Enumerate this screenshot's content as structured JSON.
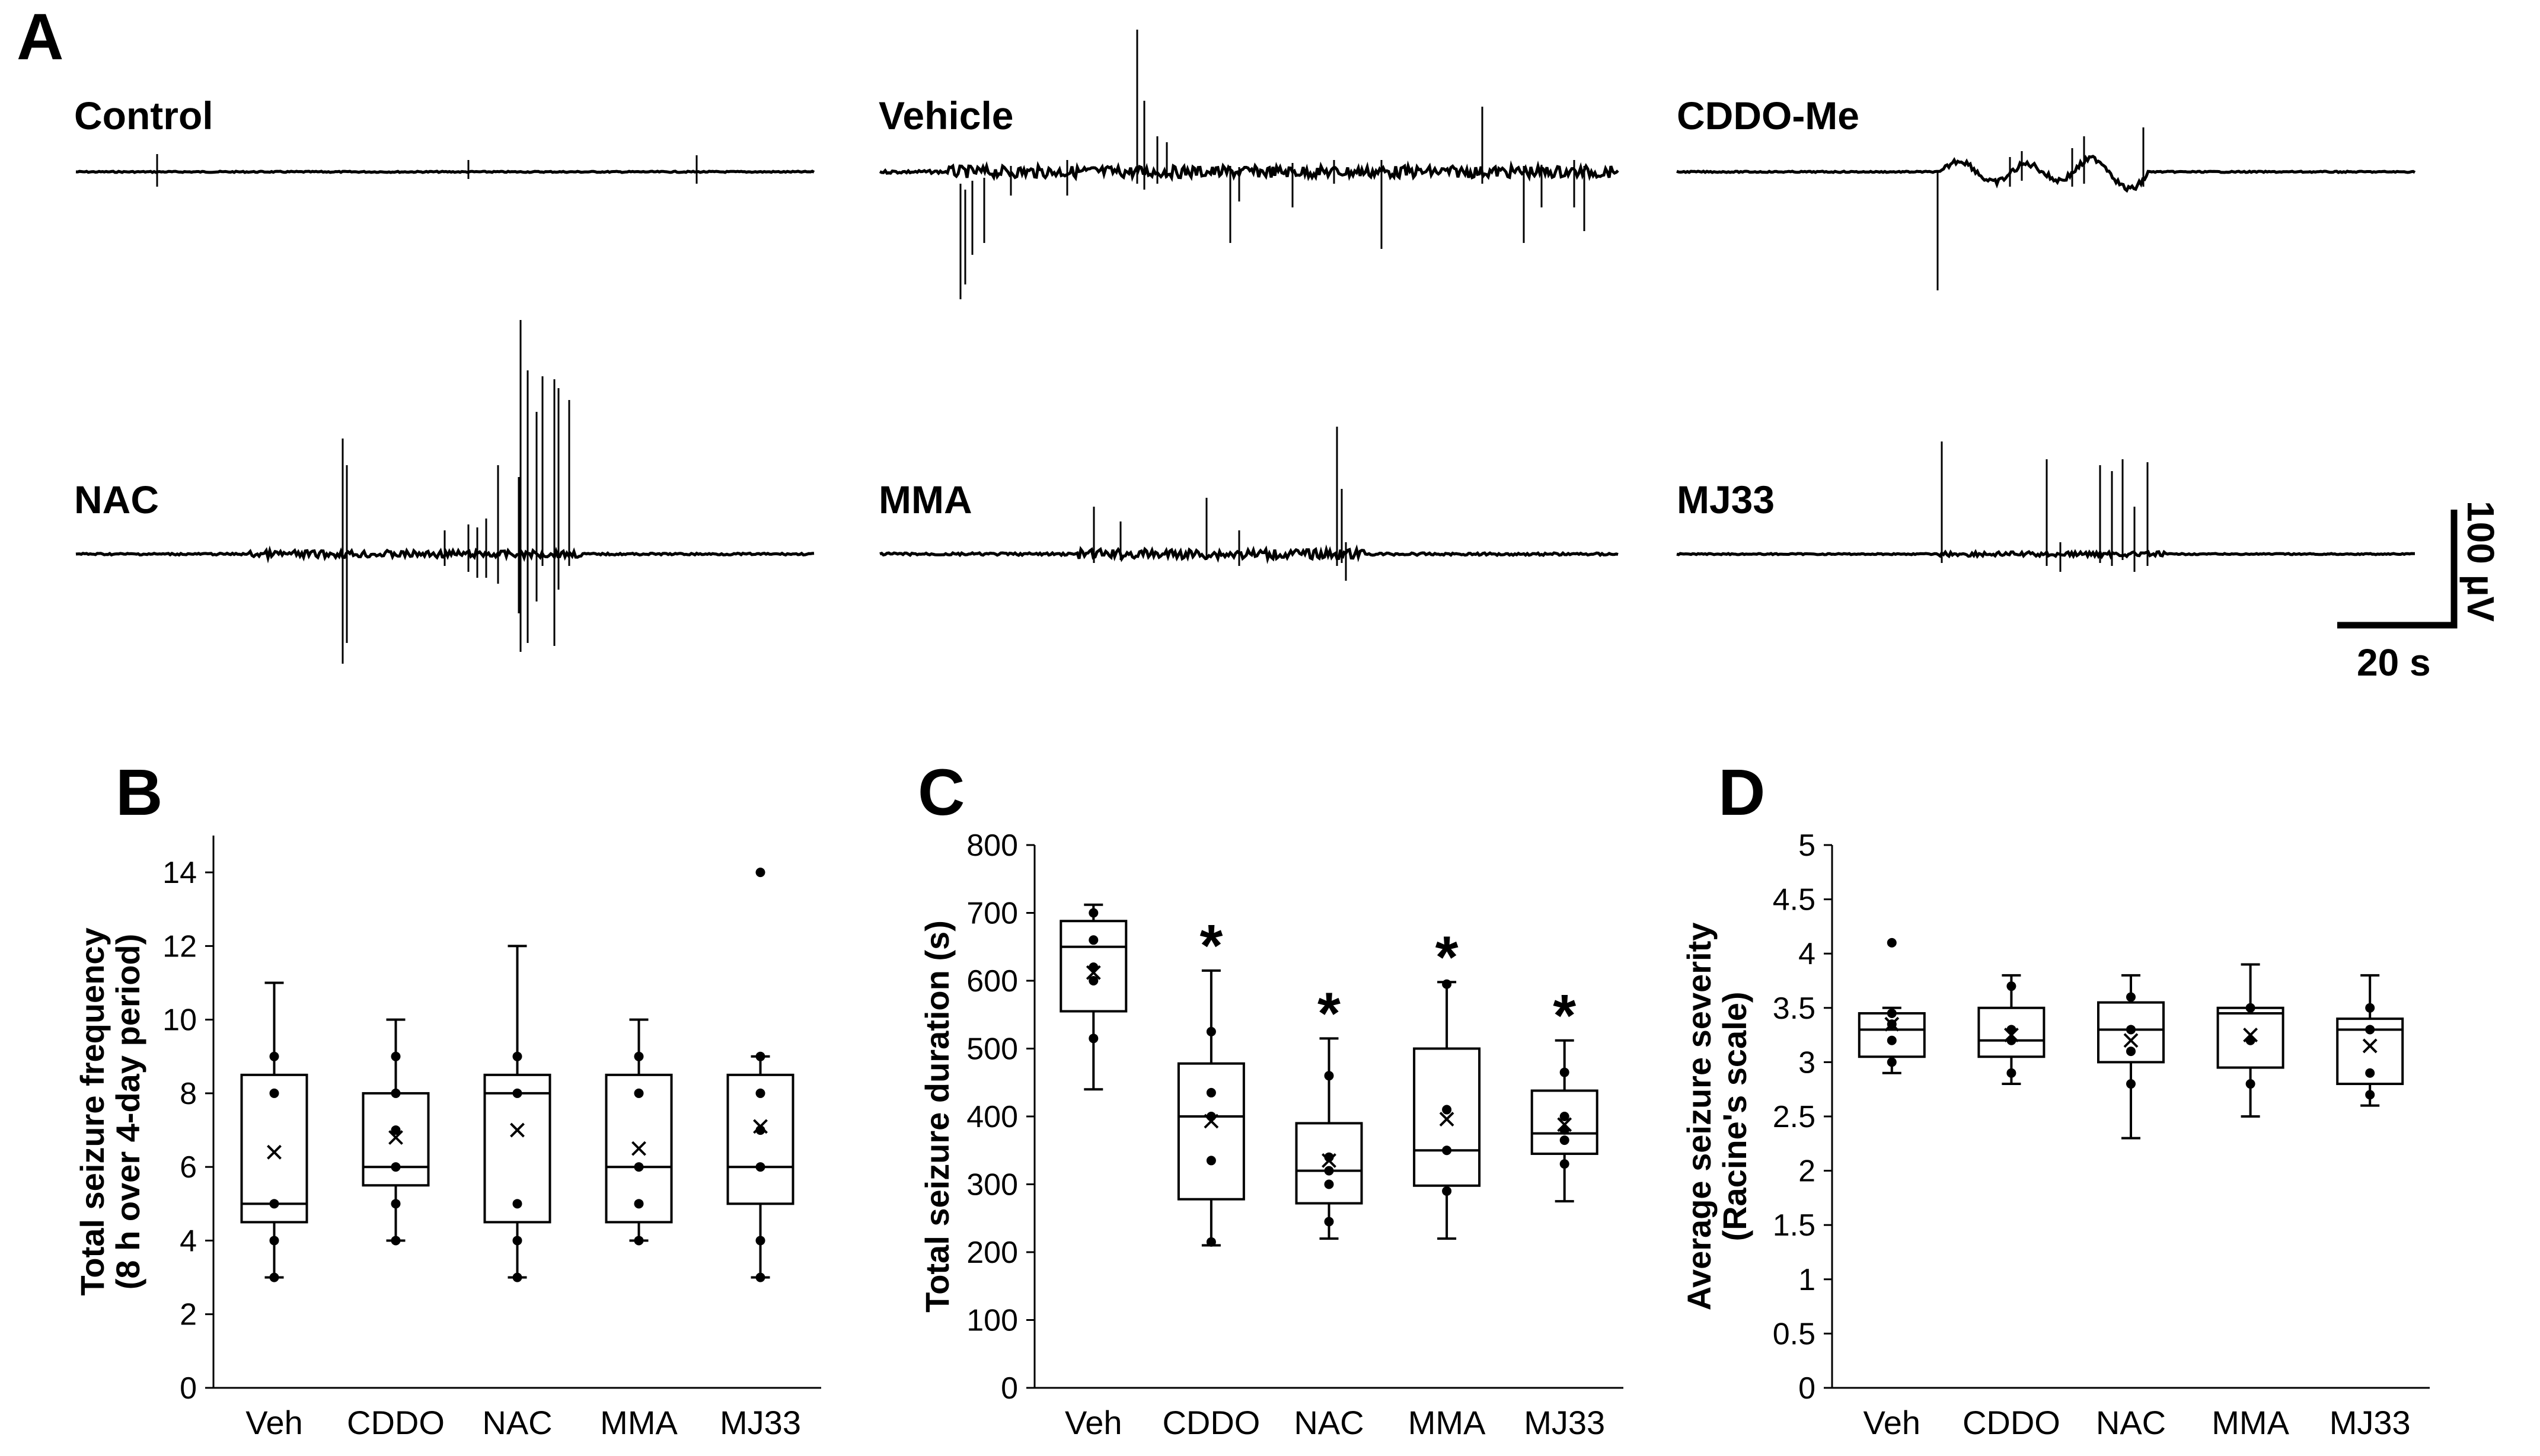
{
  "panels": {
    "A": "A",
    "B": "B",
    "C": "C",
    "D": "D"
  },
  "traces": [
    {
      "label": "Control"
    },
    {
      "label": "Vehicle"
    },
    {
      "label": "CDDO-Me"
    },
    {
      "label": "NAC"
    },
    {
      "label": "MMA"
    },
    {
      "label": "MJ33"
    }
  ],
  "scale_bar": {
    "amplitude": "100 µV",
    "time": "20 s"
  },
  "chart_data": [
    {
      "panel": "B",
      "type": "box",
      "ylabel_lines": [
        "Total seizure frequency",
        "(8 h over 4-day period)"
      ],
      "categories": [
        "Veh",
        "CDDO",
        "NAC",
        "MMA",
        "MJ33"
      ],
      "ylim": [
        0,
        15
      ],
      "yticks": [
        0,
        2,
        4,
        6,
        8,
        10,
        12,
        14
      ],
      "boxes": [
        {
          "min": 3,
          "q1": 4.5,
          "median": 5,
          "q3": 8.5,
          "max": 11,
          "mean": 6.4,
          "points": [
            3,
            4,
            5,
            8,
            9
          ],
          "outliers": [],
          "sig": ""
        },
        {
          "min": 4,
          "q1": 5.5,
          "median": 6,
          "q3": 8,
          "max": 10,
          "mean": 6.8,
          "points": [
            4,
            5,
            6,
            7,
            8,
            9
          ],
          "outliers": [],
          "sig": ""
        },
        {
          "min": 3,
          "q1": 4.5,
          "median": 8,
          "q3": 8.5,
          "max": 12,
          "mean": 7,
          "points": [
            3,
            4,
            5,
            8,
            9
          ],
          "outliers": [],
          "sig": ""
        },
        {
          "min": 4,
          "q1": 4.5,
          "median": 6,
          "q3": 8.5,
          "max": 10,
          "mean": 6.5,
          "points": [
            4,
            5,
            6,
            8,
            9
          ],
          "outliers": [],
          "sig": ""
        },
        {
          "min": 3,
          "q1": 5,
          "median": 6,
          "q3": 8.5,
          "max": 9,
          "mean": 7.1,
          "points": [
            3,
            4,
            6,
            7,
            8,
            9
          ],
          "outliers": [
            14
          ],
          "sig": ""
        }
      ]
    },
    {
      "panel": "C",
      "type": "box",
      "ylabel_lines": [
        "Total seizure duration (s)"
      ],
      "categories": [
        "Veh",
        "CDDO",
        "NAC",
        "MMA",
        "MJ33"
      ],
      "ylim": [
        0,
        800
      ],
      "yticks": [
        0,
        100,
        200,
        300,
        400,
        500,
        600,
        700,
        800
      ],
      "boxes": [
        {
          "min": 440,
          "q1": 555,
          "median": 650,
          "q3": 688,
          "max": 712,
          "mean": 612,
          "points": [
            515,
            600,
            620,
            660,
            700
          ],
          "outliers": [],
          "sig": ""
        },
        {
          "min": 210,
          "q1": 278,
          "median": 400,
          "q3": 478,
          "max": 615,
          "mean": 393,
          "points": [
            215,
            335,
            400,
            435,
            525
          ],
          "outliers": [],
          "sig": "*"
        },
        {
          "min": 220,
          "q1": 272,
          "median": 320,
          "q3": 390,
          "max": 515,
          "mean": 335,
          "points": [
            245,
            300,
            320,
            340,
            460
          ],
          "outliers": [],
          "sig": "*"
        },
        {
          "min": 220,
          "q1": 298,
          "median": 350,
          "q3": 500,
          "max": 598,
          "mean": 396,
          "points": [
            290,
            350,
            410,
            595
          ],
          "outliers": [],
          "sig": "*"
        },
        {
          "min": 275,
          "q1": 345,
          "median": 375,
          "q3": 438,
          "max": 512,
          "mean": 388,
          "points": [
            330,
            365,
            380,
            400,
            465
          ],
          "outliers": [],
          "sig": "*"
        }
      ]
    },
    {
      "panel": "D",
      "type": "box",
      "ylabel_lines": [
        "Average seizure severity",
        "(Racine's scale)"
      ],
      "categories": [
        "Veh",
        "CDDO",
        "NAC",
        "MMA",
        "MJ33"
      ],
      "ylim": [
        0,
        5
      ],
      "yticks": [
        "0",
        "0.5",
        "1",
        "1.5",
        "2",
        "2.5",
        "3",
        "3.5",
        "4",
        "4.5",
        "5"
      ],
      "boxes": [
        {
          "min": 2.9,
          "q1": 3.05,
          "median": 3.3,
          "q3": 3.45,
          "max": 3.5,
          "mean": 3.35,
          "points": [
            3.0,
            3.2,
            3.35,
            3.45
          ],
          "outliers": [
            4.1
          ],
          "sig": ""
        },
        {
          "min": 2.8,
          "q1": 3.05,
          "median": 3.2,
          "q3": 3.5,
          "max": 3.8,
          "mean": 3.25,
          "points": [
            2.9,
            3.2,
            3.3,
            3.7
          ],
          "outliers": [],
          "sig": ""
        },
        {
          "min": 2.3,
          "q1": 3.0,
          "median": 3.3,
          "q3": 3.55,
          "max": 3.8,
          "mean": 3.2,
          "points": [
            2.8,
            3.1,
            3.3,
            3.6
          ],
          "outliers": [],
          "sig": ""
        },
        {
          "min": 2.5,
          "q1": 2.95,
          "median": 3.45,
          "q3": 3.5,
          "max": 3.9,
          "mean": 3.25,
          "points": [
            2.8,
            3.2,
            3.5
          ],
          "outliers": [],
          "sig": ""
        },
        {
          "min": 2.6,
          "q1": 2.8,
          "median": 3.3,
          "q3": 3.4,
          "max": 3.8,
          "mean": 3.15,
          "points": [
            2.7,
            2.9,
            3.3,
            3.5
          ],
          "outliers": [],
          "sig": ""
        }
      ]
    }
  ]
}
